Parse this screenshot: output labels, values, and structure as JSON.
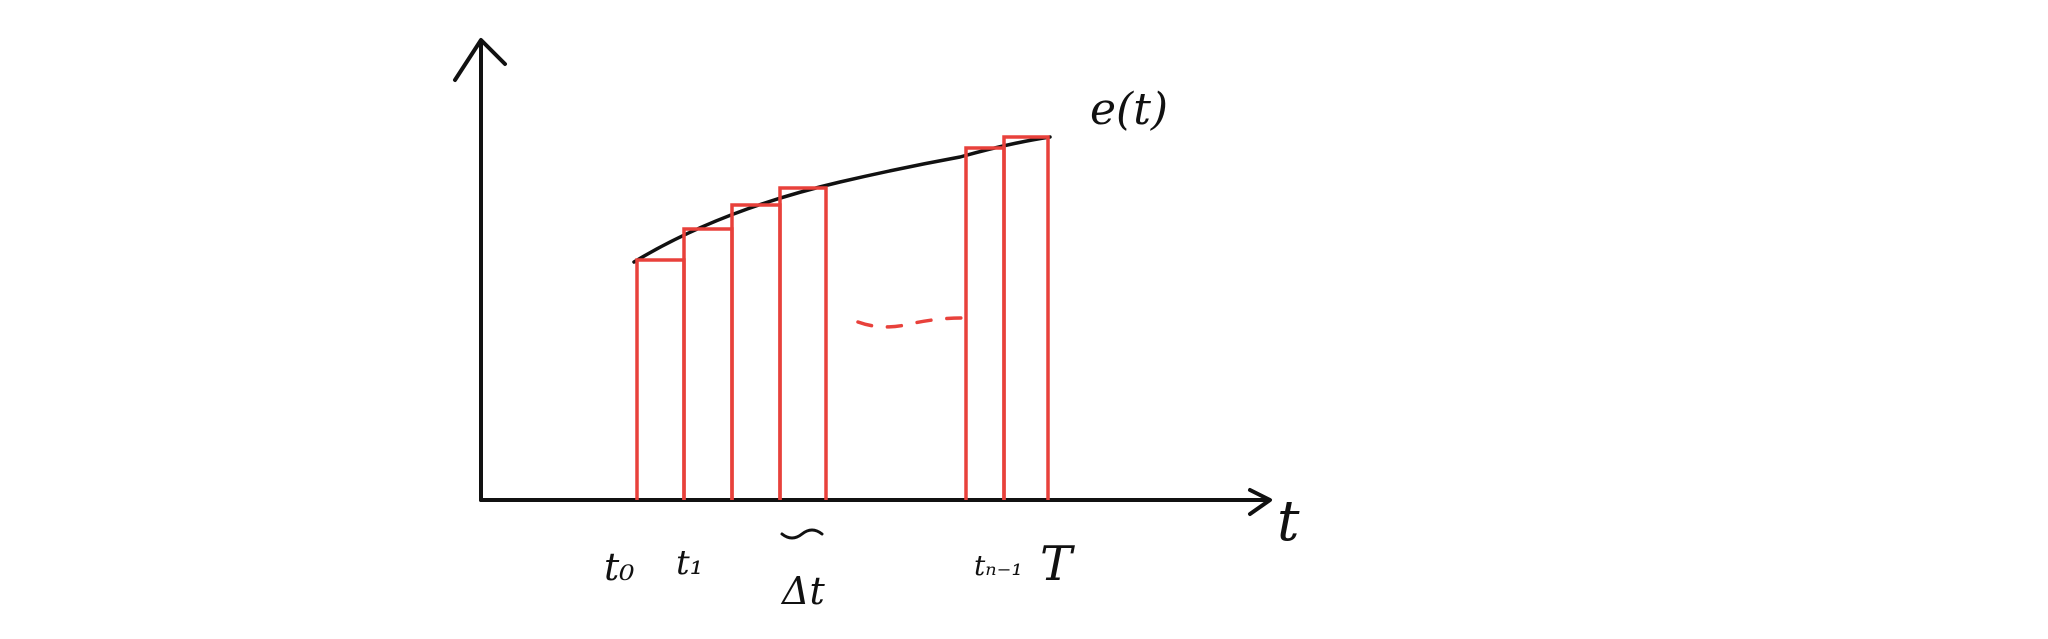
{
  "labels": {
    "curve": "e(t)",
    "x_axis": "t",
    "t0": "t₀",
    "t1": "t₁",
    "delta": "Δt",
    "tn1": "tₙ₋₁",
    "T": "T"
  },
  "colors": {
    "axis": "#111111",
    "curve": "#111111",
    "bars": "#e8413b"
  }
}
